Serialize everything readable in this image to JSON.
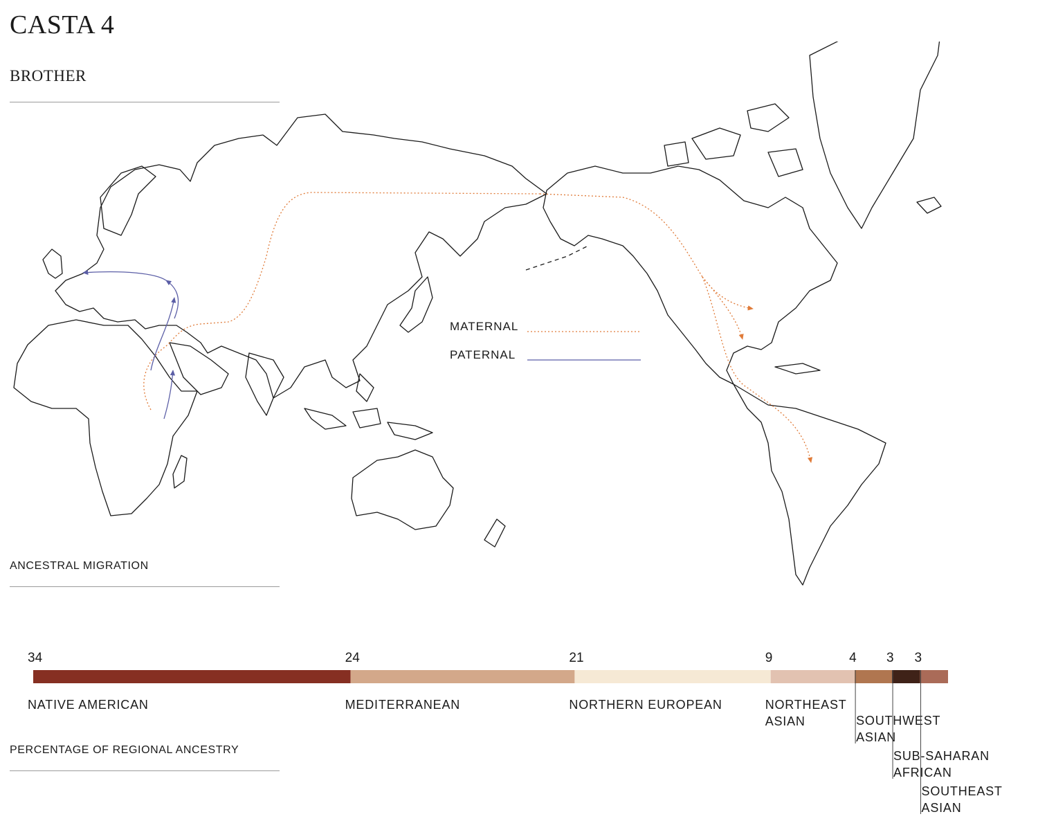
{
  "header": {
    "title": "CASTA 4",
    "subtitle": "BROTHER"
  },
  "map": {
    "section_label": "ANCESTRAL MIGRATION",
    "legend": [
      {
        "label": "MATERNAL",
        "style": "dotted",
        "color": "#e07b39"
      },
      {
        "label": "PATERNAL",
        "style": "solid",
        "color": "#5b5ea6"
      }
    ]
  },
  "chart_data": {
    "type": "bar",
    "title": "",
    "section_label": "PERCENTAGE OF REGIONAL ANCESTRY",
    "unit": "percent",
    "orientation": "stacked-horizontal",
    "segments": [
      {
        "value": 34,
        "value_label": "34",
        "label_lines": [
          "NATIVE AMERICAN"
        ],
        "color": "#862f22"
      },
      {
        "value": 24,
        "value_label": "24",
        "label_lines": [
          "MEDITERRANEAN"
        ],
        "color": "#d3a88a"
      },
      {
        "value": 21,
        "value_label": "21",
        "label_lines": [
          "NORTHERN EUROPEAN"
        ],
        "color": "#f6e9d5"
      },
      {
        "value": 9,
        "value_label": "9",
        "label_lines": [
          "NORTHEAST",
          "ASIAN"
        ],
        "color": "#e2c2b1"
      },
      {
        "value": 4,
        "value_label": "4",
        "label_lines": [
          "SOUTHWEST",
          "ASIAN"
        ],
        "color": "#b07650"
      },
      {
        "value": 3,
        "value_label": "3",
        "label_lines": [
          "SUB-SAHARAN",
          "AFRICAN"
        ],
        "color": "#3f2218"
      },
      {
        "value": 3,
        "value_label": "3",
        "label_lines": [
          "SOUTHEAST",
          "ASIAN"
        ],
        "color": "#aa6b58"
      }
    ]
  }
}
